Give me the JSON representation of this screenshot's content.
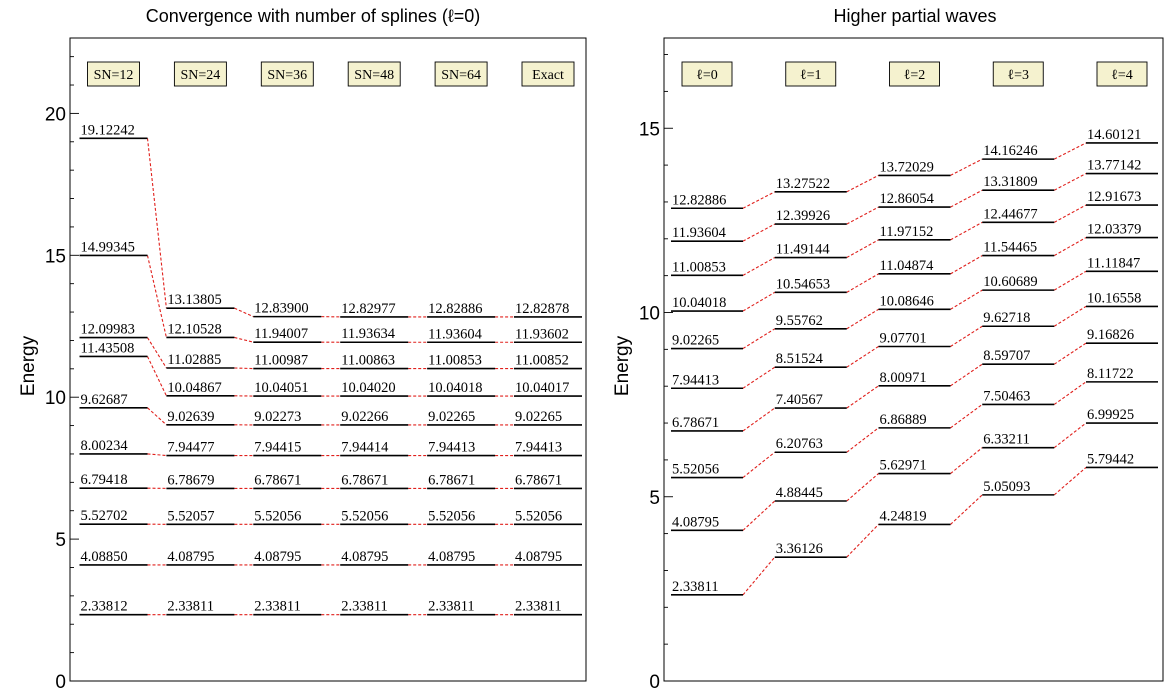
{
  "chart_data": [
    {
      "type": "level-diagram",
      "title": "Convergence with number of splines (ℓ=0)",
      "ylabel": "Energy",
      "ylim": [
        0,
        23
      ],
      "yticks": [
        0,
        5,
        10,
        15,
        20
      ],
      "columns": [
        {
          "label": "SN=12",
          "values": [
            "2.33812",
            "4.08850",
            "5.52702",
            "6.79418",
            "8.00234",
            "9.62687",
            "11.43508",
            "12.09983",
            "14.99345",
            "19.12242"
          ]
        },
        {
          "label": "SN=24",
          "values": [
            "2.33811",
            "4.08795",
            "5.52057",
            "6.78679",
            "7.94477",
            "9.02639",
            "10.04867",
            "11.02885",
            "12.10528",
            "13.13805"
          ]
        },
        {
          "label": "SN=36",
          "values": [
            "2.33811",
            "4.08795",
            "5.52056",
            "6.78671",
            "7.94415",
            "9.02273",
            "10.04051",
            "11.00987",
            "11.94007",
            "12.83900"
          ]
        },
        {
          "label": "SN=48",
          "values": [
            "2.33811",
            "4.08795",
            "5.52056",
            "6.78671",
            "7.94414",
            "9.02266",
            "10.04020",
            "11.00863",
            "11.93634",
            "12.82977"
          ]
        },
        {
          "label": "SN=64",
          "values": [
            "2.33811",
            "4.08795",
            "5.52056",
            "6.78671",
            "7.94413",
            "9.02265",
            "10.04018",
            "11.00853",
            "11.93604",
            "12.82886"
          ]
        },
        {
          "label": "Exact",
          "values": [
            "2.33811",
            "4.08795",
            "5.52056",
            "6.78671",
            "7.94413",
            "9.02265",
            "10.04017",
            "11.00852",
            "11.93602",
            "12.82878"
          ]
        }
      ]
    },
    {
      "type": "level-diagram",
      "title": "Higher partial waves",
      "ylabel": "Energy",
      "ylim": [
        0,
        17.5
      ],
      "yticks": [
        0,
        5,
        10,
        15
      ],
      "columns": [
        {
          "label": "ℓ=0",
          "values": [
            "2.33811",
            "4.08795",
            "5.52056",
            "6.78671",
            "7.94413",
            "9.02265",
            "10.04018",
            "11.00853",
            "11.93604",
            "12.82886"
          ]
        },
        {
          "label": "ℓ=1",
          "values": [
            "3.36126",
            "4.88445",
            "6.20763",
            "7.40567",
            "8.51524",
            "9.55762",
            "10.54653",
            "11.49144",
            "12.39926",
            "13.27522"
          ]
        },
        {
          "label": "ℓ=2",
          "values": [
            "4.24819",
            "5.62971",
            "6.86889",
            "8.00971",
            "9.07701",
            "10.08646",
            "11.04874",
            "11.97152",
            "12.86054",
            "13.72029"
          ]
        },
        {
          "label": "ℓ=3",
          "values": [
            "5.05093",
            "6.33211",
            "7.50463",
            "8.59707",
            "9.62718",
            "10.60689",
            "11.54465",
            "12.44677",
            "13.31809",
            "14.16246"
          ]
        },
        {
          "label": "ℓ=4",
          "values": [
            "5.79442",
            "6.99925",
            "8.11722",
            "9.16826",
            "10.16558",
            "11.11847",
            "12.03379",
            "12.91673",
            "13.77142",
            "14.60121"
          ]
        }
      ]
    }
  ],
  "colors": {
    "level": "#000000",
    "connector": "#e0201c",
    "header_fill": "#f5f2cf"
  }
}
